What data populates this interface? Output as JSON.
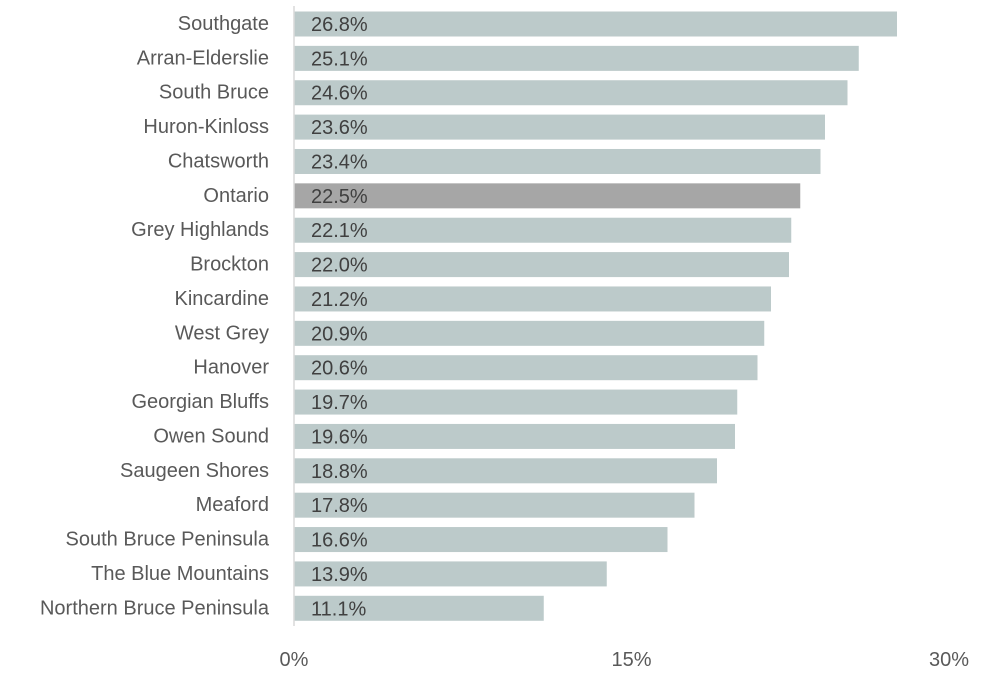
{
  "chart_data": {
    "type": "bar",
    "orientation": "horizontal",
    "categories": [
      "Southgate",
      "Arran-Elderslie",
      "South Bruce",
      "Huron-Kinloss",
      "Chatsworth",
      "Ontario",
      "Grey Highlands",
      "Brockton",
      "Kincardine",
      "West Grey",
      "Hanover",
      "Georgian Bluffs",
      "Owen Sound",
      "Saugeen Shores",
      "Meaford",
      "South Bruce Peninsula",
      "The Blue Mountains",
      "Northern Bruce Peninsula"
    ],
    "values": [
      26.8,
      25.1,
      24.6,
      23.6,
      23.4,
      22.5,
      22.1,
      22.0,
      21.2,
      20.9,
      20.6,
      19.7,
      19.6,
      18.8,
      17.8,
      16.6,
      13.9,
      11.1
    ],
    "value_labels": [
      "26.8%",
      "25.1%",
      "24.6%",
      "23.6%",
      "23.4%",
      "22.5%",
      "22.1%",
      "22.0%",
      "21.2%",
      "20.9%",
      "20.6%",
      "19.7%",
      "19.6%",
      "18.8%",
      "17.8%",
      "16.6%",
      "13.9%",
      "11.1%"
    ],
    "highlight": "Ontario",
    "xlim": [
      0,
      30
    ],
    "x_ticks": [
      0,
      15,
      30
    ],
    "x_tick_labels": [
      "0%",
      "15%",
      "30%"
    ],
    "title": "",
    "xlabel": "",
    "ylabel": "",
    "grid": false,
    "colors": {
      "bar": "#bccaca",
      "highlight": "#a6a6a6",
      "axis": "#d9d9d9",
      "text": "#595959"
    }
  }
}
